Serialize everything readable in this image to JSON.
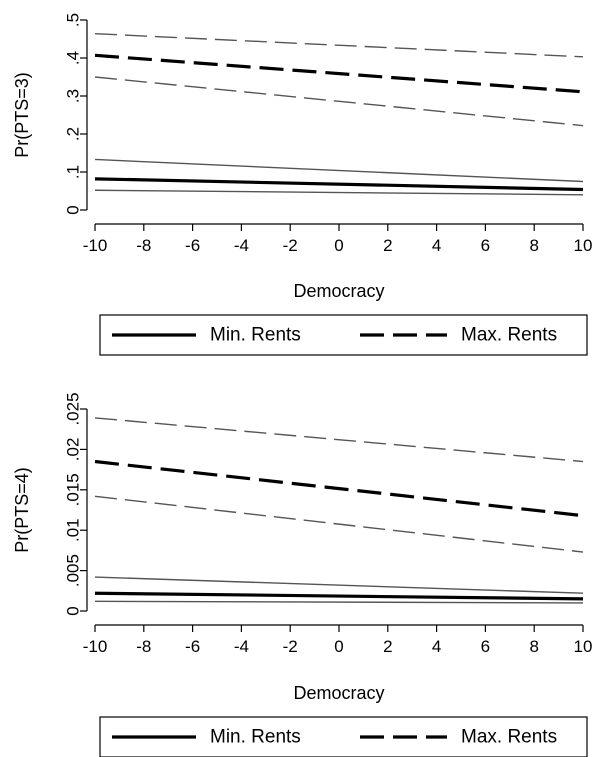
{
  "colors": {
    "estimate": "#000000",
    "ci_band": "#555555",
    "axis": "#000000",
    "background": "#ffffff"
  },
  "chart_data": [
    {
      "type": "line",
      "title": "",
      "xlabel": "Democracy",
      "ylabel": "Pr(PTS=3)",
      "xlim": [
        -10,
        10
      ],
      "ylim": [
        0,
        0.5
      ],
      "x_ticks": [
        -10,
        -8,
        -6,
        -4,
        -2,
        0,
        2,
        4,
        6,
        8,
        10
      ],
      "x_tick_labels": [
        "-10",
        "-8",
        "-6",
        "-4",
        "-2",
        "0",
        "2",
        "4",
        "6",
        "8",
        "10"
      ],
      "y_ticks": [
        0,
        0.1,
        0.2,
        0.3,
        0.4,
        0.5
      ],
      "y_tick_labels": [
        "0",
        ".1",
        ".2",
        ".3",
        ".4",
        ".5"
      ],
      "grid": false,
      "legend_position": "bottom",
      "legend": [
        "Min. Rents",
        "Max. Rents"
      ],
      "series": [
        {
          "name": "Min. Rents",
          "role": "estimate",
          "style": "solid",
          "x": [
            -10,
            10
          ],
          "y": [
            0.082,
            0.054
          ]
        },
        {
          "role": "upper-ci",
          "style": "solid",
          "x": [
            -10,
            10
          ],
          "y": [
            0.133,
            0.075
          ]
        },
        {
          "role": "lower-ci",
          "style": "solid",
          "x": [
            -10,
            10
          ],
          "y": [
            0.052,
            0.04
          ]
        },
        {
          "name": "Max. Rents",
          "role": "estimate",
          "style": "dashed",
          "x": [
            -10,
            10
          ],
          "y": [
            0.407,
            0.311
          ]
        },
        {
          "role": "upper-ci",
          "style": "dashed",
          "x": [
            -10,
            10
          ],
          "y": [
            0.464,
            0.403
          ]
        },
        {
          "role": "lower-ci",
          "style": "dashed",
          "x": [
            -10,
            10
          ],
          "y": [
            0.35,
            0.222
          ]
        }
      ]
    },
    {
      "type": "line",
      "title": "",
      "xlabel": "Democracy",
      "ylabel": "Pr(PTS=4)",
      "xlim": [
        -10,
        10
      ],
      "ylim": [
        0,
        0.025
      ],
      "x_ticks": [
        -10,
        -8,
        -6,
        -4,
        -2,
        0,
        2,
        4,
        6,
        8,
        10
      ],
      "x_tick_labels": [
        "-10",
        "-8",
        "-6",
        "-4",
        "-2",
        "0",
        "2",
        "4",
        "6",
        "8",
        "10"
      ],
      "y_ticks": [
        0,
        0.005,
        0.01,
        0.015,
        0.02,
        0.025
      ],
      "y_tick_labels": [
        "0",
        ".005",
        ".01",
        ".015",
        ".02",
        ".025"
      ],
      "grid": false,
      "legend_position": "bottom",
      "legend": [
        "Min. Rents",
        "Max. Rents"
      ],
      "series": [
        {
          "name": "Min. Rents",
          "role": "estimate",
          "style": "solid",
          "x": [
            -10,
            10
          ],
          "y": [
            0.0022,
            0.0015
          ]
        },
        {
          "role": "upper-ci",
          "style": "solid",
          "x": [
            -10,
            10
          ],
          "y": [
            0.0042,
            0.0022
          ]
        },
        {
          "role": "lower-ci",
          "style": "solid",
          "x": [
            -10,
            10
          ],
          "y": [
            0.0012,
            0.001
          ]
        },
        {
          "name": "Max. Rents",
          "role": "estimate",
          "style": "dashed",
          "x": [
            -10,
            10
          ],
          "y": [
            0.0185,
            0.0118
          ]
        },
        {
          "role": "upper-ci",
          "style": "dashed",
          "x": [
            -10,
            10
          ],
          "y": [
            0.0239,
            0.0185
          ]
        },
        {
          "role": "lower-ci",
          "style": "dashed",
          "x": [
            -10,
            10
          ],
          "y": [
            0.0142,
            0.0073
          ]
        }
      ]
    }
  ]
}
